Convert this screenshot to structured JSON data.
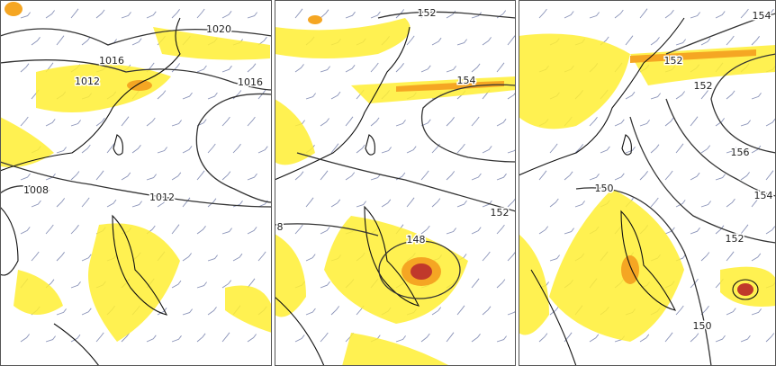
{
  "panels": [
    {
      "labels": [
        "1020",
        "1016",
        "1012",
        "1016",
        "1008",
        "1012"
      ]
    },
    {
      "labels": [
        "152",
        "154",
        "152",
        "148",
        "8"
      ]
    },
    {
      "labels": [
        "154",
        "152",
        "152",
        "156",
        "154",
        "150",
        "152",
        "150"
      ]
    }
  ]
}
